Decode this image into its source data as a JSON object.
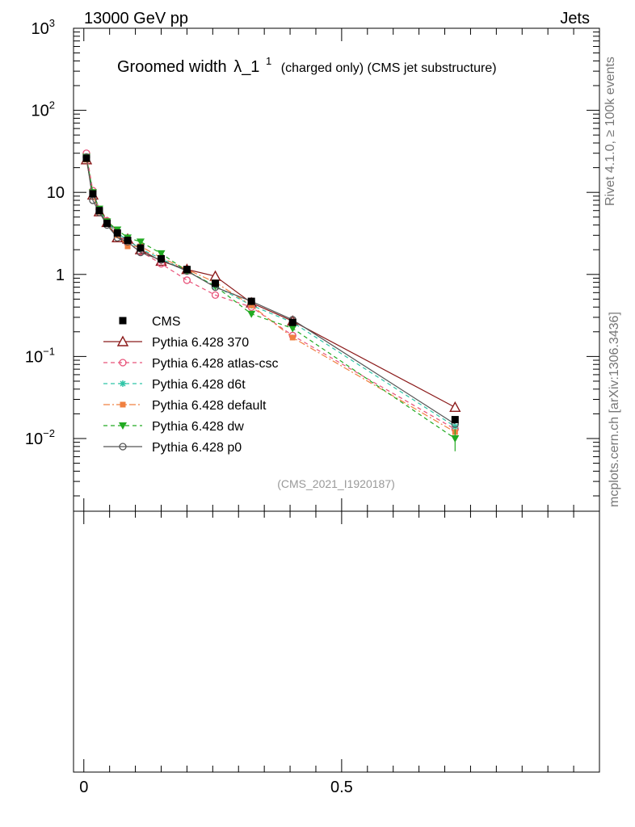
{
  "header": {
    "energy_label": "13000 GeV pp",
    "process_label": "Jets"
  },
  "side_labels": {
    "rivet": "Rivet 4.1.0, ≥ 100k events",
    "mcplots": "mcplots.cern.ch [arXiv:1306.3436]"
  },
  "chart_data": {
    "type": "line",
    "title_main": "Groomed width",
    "title_symbol": "λ_1",
    "title_superscript": "1",
    "title_sub": "(charged only) (CMS jet substructure)",
    "analysis_id": "(CMS_2021_I1920187)",
    "xlabel": "",
    "ylabel": "",
    "yscale": "log",
    "xlim": [
      -0.02,
      1.0
    ],
    "ylim": [
      0.0013,
      1000
    ],
    "x_ticks": [
      {
        "v": 0,
        "label": "0"
      },
      {
        "v": 0.5,
        "label": "0.5"
      }
    ],
    "y_ticks": [
      {
        "v": 1000,
        "label": "10",
        "sup": "3"
      },
      {
        "v": 100,
        "label": "10",
        "sup": "2"
      },
      {
        "v": 10,
        "label": "10",
        "sup": ""
      },
      {
        "v": 1,
        "label": "1",
        "sup": ""
      },
      {
        "v": 0.1,
        "label": "10",
        "sup": "−1"
      },
      {
        "v": 0.01,
        "label": "10",
        "sup": "−2"
      }
    ],
    "x": [
      0.005,
      0.0175,
      0.03,
      0.045,
      0.065,
      0.085,
      0.11,
      0.15,
      0.2,
      0.255,
      0.325,
      0.405,
      0.72
    ],
    "series": [
      {
        "name": "CMS",
        "color": "#000000",
        "marker": "square",
        "line": "none",
        "values": [
          26,
          9.6,
          6.0,
          4.2,
          3.2,
          2.6,
          2.1,
          1.55,
          1.15,
          0.78,
          0.47,
          0.26,
          0.017
        ]
      },
      {
        "name": "Pythia 6.428 370",
        "color": "#8b1a1a",
        "marker": "triangle-open",
        "line": "solid",
        "values": [
          25,
          9.3,
          5.8,
          4.3,
          2.8,
          2.7,
          2.0,
          1.45,
          1.15,
          0.95,
          0.45,
          0.27,
          0.024
        ]
      },
      {
        "name": "Pythia 6.428 atlas-csc",
        "color": "#e8537a",
        "marker": "circle-open",
        "line": "dashed",
        "values": [
          30,
          10.5,
          6.2,
          4.5,
          3.3,
          2.4,
          1.9,
          1.35,
          0.85,
          0.56,
          0.4,
          0.18,
          0.013
        ]
      },
      {
        "name": "Pythia 6.428 d6t",
        "color": "#2ec4a6",
        "marker": "star",
        "line": "dashed",
        "values": [
          26,
          9.8,
          6.1,
          4.3,
          3.2,
          2.6,
          2.05,
          1.55,
          1.1,
          0.72,
          0.42,
          0.26,
          0.014
        ]
      },
      {
        "name": "Pythia 6.428 default",
        "color": "#f08040",
        "marker": "square-filled",
        "line": "dashdot",
        "values": [
          25,
          9.5,
          5.8,
          4.1,
          3.0,
          2.2,
          2.2,
          1.6,
          1.15,
          0.8,
          0.42,
          0.17,
          0.012
        ]
      },
      {
        "name": "Pythia 6.428 dw",
        "color": "#22aa22",
        "marker": "triangle-down",
        "line": "dashed",
        "values": [
          27,
          10.0,
          6.3,
          4.4,
          3.5,
          2.8,
          2.5,
          1.8,
          1.1,
          0.72,
          0.33,
          0.22,
          0.01
        ]
      },
      {
        "name": "Pythia 6.428 p0",
        "color": "#555555",
        "marker": "circle-open",
        "line": "solid",
        "values": [
          27,
          8.0,
          5.7,
          4.0,
          2.8,
          2.5,
          1.85,
          1.5,
          1.1,
          0.7,
          0.47,
          0.28,
          0.015
        ]
      }
    ],
    "legend_position": "left-middle"
  }
}
